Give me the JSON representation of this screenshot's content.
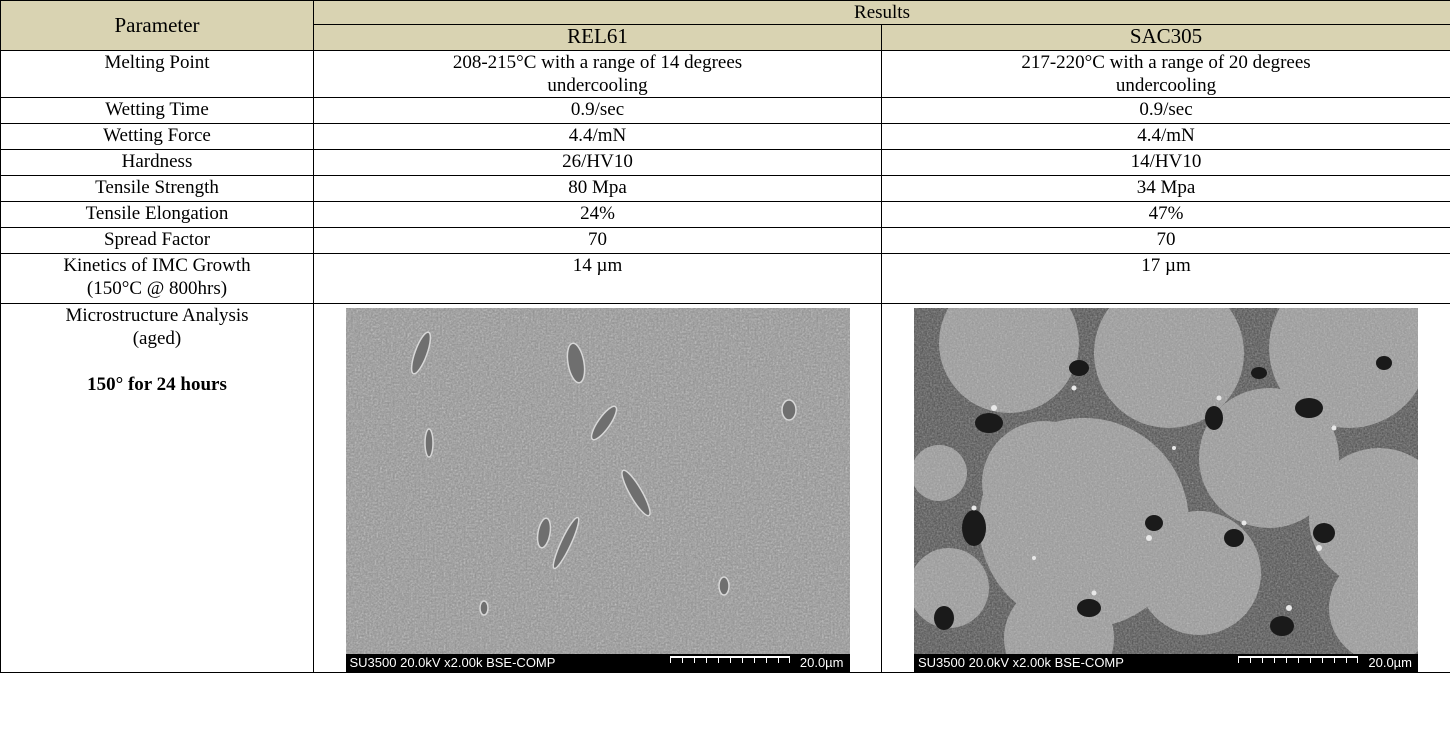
{
  "header": {
    "parameter": "Parameter",
    "results": "Results",
    "col_a": "REL61",
    "col_b": "SAC305"
  },
  "rows": [
    {
      "param": "Melting Point",
      "a": "208-215°C with a range of 14 degrees undercooling",
      "b": "217-220°C with a range of 20 degrees undercooling"
    },
    {
      "param": "Wetting Time",
      "a": "0.9/sec",
      "b": "0.9/sec"
    },
    {
      "param": "Wetting Force",
      "a": "4.4/mN",
      "b": "4.4/mN"
    },
    {
      "param": "Hardness",
      "a": "26/HV10",
      "b": "14/HV10"
    },
    {
      "param": "Tensile Strength",
      "a": "80 Mpa",
      "b": "34 Mpa"
    },
    {
      "param": "Tensile Elongation",
      "a": "24%",
      "b": "47%"
    },
    {
      "param": "Spread Factor",
      "a": "70",
      "b": "70"
    },
    {
      "param_line1": "Kinetics of IMC Growth",
      "param_line2": "(150°C @ 800hrs)",
      "a": "14 µm",
      "b": "17 µm"
    }
  ],
  "micro": {
    "label_line1": "Microstructure Analysis",
    "label_line2": "(aged)",
    "condition": "150° for 24 hours",
    "img_a": {
      "meta": "SU3500 20.0kV x2.00k BSE-COMP",
      "scale": "20.0µm"
    },
    "img_b": {
      "meta": "SU3500 20.0kV x2.00k BSE-COMP",
      "scale": "20.0µm"
    }
  },
  "colors": {
    "header_bg": "#d9d3b2",
    "border": "#000000"
  }
}
